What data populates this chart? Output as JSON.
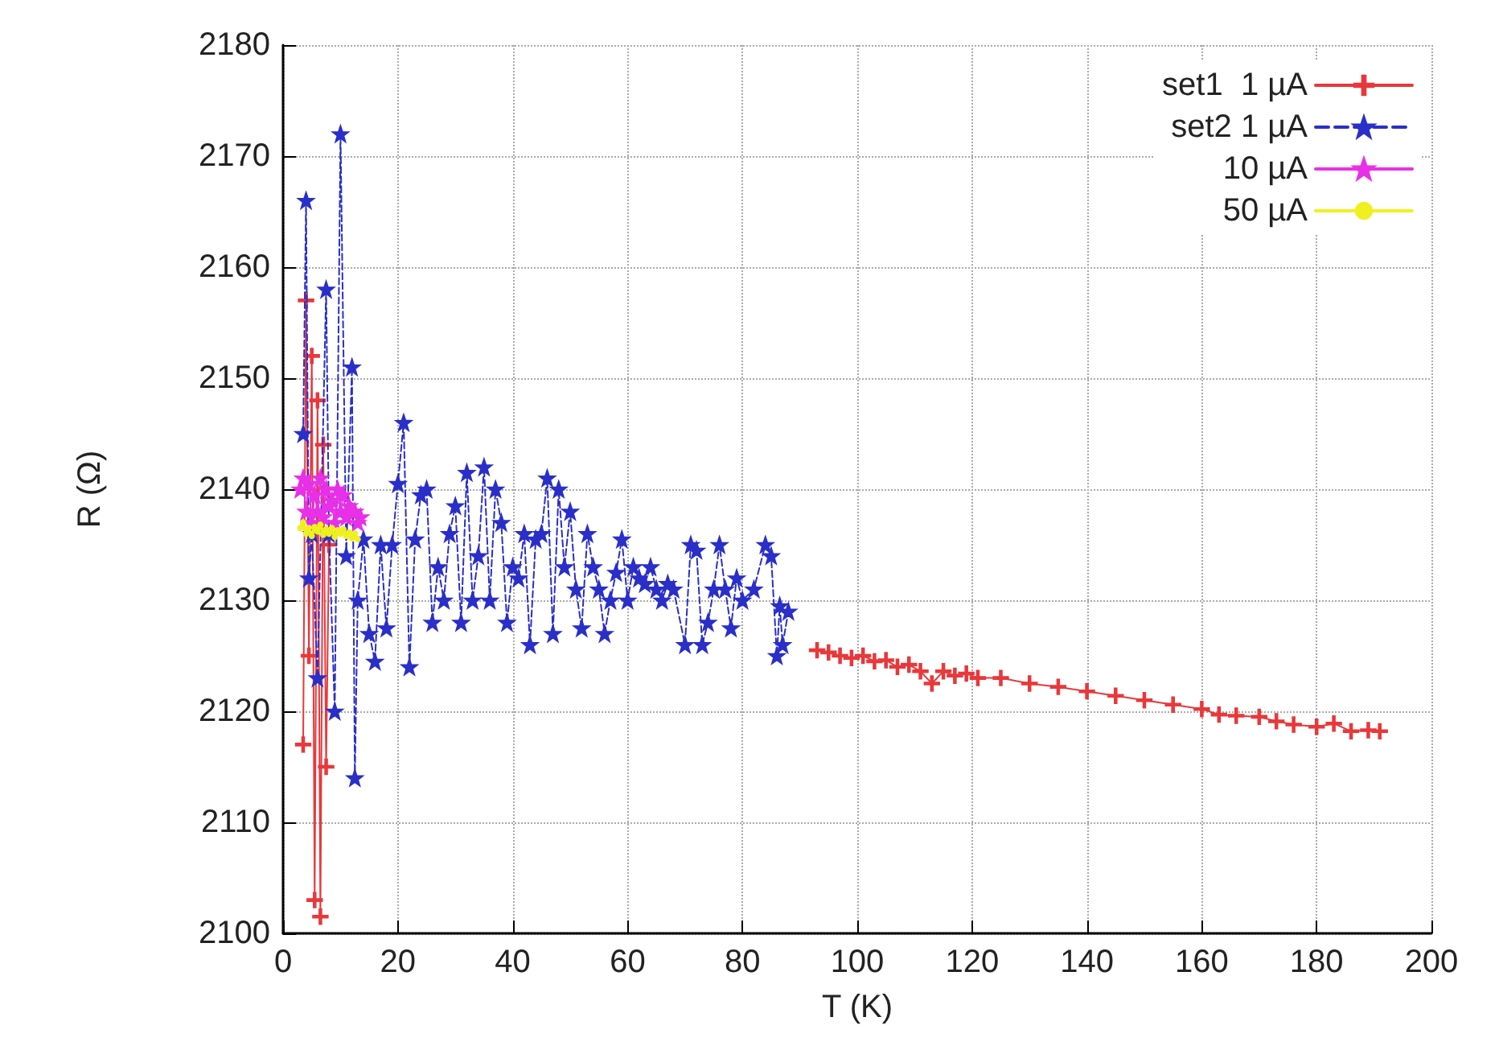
{
  "chart_data": {
    "type": "line",
    "xlabel": "T (K)",
    "ylabel": "R (Ω)",
    "xlim": [
      0,
      200
    ],
    "xticks": [
      0,
      20,
      40,
      60,
      80,
      100,
      120,
      140,
      160,
      180,
      200
    ],
    "ylim": [
      2100,
      2180
    ],
    "yticks": [
      2100,
      2110,
      2120,
      2130,
      2140,
      2150,
      2160,
      2170,
      2180
    ],
    "grid": true,
    "legend": "top right",
    "series": [
      {
        "name": "set1  1 µA",
        "color": "#e8383b",
        "marker": "cross",
        "line_style": "solid",
        "x": [
          3.5,
          4,
          4.5,
          5,
          5.5,
          6,
          6.5,
          7,
          7.5,
          8,
          null,
          93,
          95,
          97,
          99,
          101,
          103,
          105,
          107,
          109,
          111,
          113,
          115,
          117,
          119,
          121,
          125,
          130,
          135,
          140,
          145,
          150,
          155,
          160,
          163,
          166,
          170,
          173,
          176,
          180,
          183,
          186,
          189,
          191
        ],
        "values": [
          2117,
          2157,
          2125,
          2152,
          2103,
          2148,
          2101.5,
          2144,
          2115,
          2135,
          null,
          2125.5,
          2125.3,
          2125,
          2124.8,
          2125,
          2124.5,
          2124.6,
          2124,
          2124.2,
          2123.6,
          2122.5,
          2123.6,
          2123.2,
          2123.4,
          2123,
          2123,
          2122.5,
          2122.2,
          2121.8,
          2121.4,
          2121,
          2120.6,
          2120.2,
          2119.7,
          2119.6,
          2119.5,
          2119.1,
          2118.8,
          2118.6,
          2118.9,
          2118.2,
          2118.3,
          2118.2
        ]
      },
      {
        "name": "set2 1 µA",
        "color": "#2a2fc8",
        "marker": "star",
        "line_style": "dashed",
        "x": [
          3.5,
          4,
          4.5,
          5,
          6,
          7.5,
          8,
          9,
          10,
          11,
          12,
          12.5,
          13,
          14,
          15,
          16,
          17,
          18,
          19,
          20,
          21,
          22,
          23,
          24,
          25,
          26,
          27,
          28,
          29,
          30,
          31,
          32,
          33,
          34,
          35,
          36,
          37,
          38,
          39,
          40,
          41,
          42,
          43,
          44,
          45,
          46,
          47,
          48,
          49,
          50,
          51,
          52,
          53,
          54,
          55,
          56,
          57,
          58,
          59,
          60,
          61,
          62,
          63,
          64,
          65,
          66,
          67,
          68,
          70,
          71,
          72,
          73,
          74,
          75,
          76,
          77,
          78,
          79,
          80,
          82,
          84,
          85,
          86,
          86.5,
          87,
          88
        ],
        "values": [
          2145,
          2166,
          2132,
          2136,
          2123,
          2158,
          2136,
          2120,
          2172,
          2134,
          2151,
          2114,
          2130,
          2135.5,
          2127,
          2124.5,
          2135,
          2127.5,
          2135,
          2140.5,
          2146,
          2124,
          2135.5,
          2139.5,
          2140,
          2128,
          2133,
          2130,
          2136,
          2138.5,
          2128,
          2141.5,
          2130,
          2134,
          2142,
          2130,
          2140,
          2137,
          2128,
          2133,
          2132,
          2136,
          2126,
          2135.5,
          2136,
          2141,
          2127,
          2140,
          2133,
          2138,
          2131,
          2127.5,
          2136,
          2133,
          2131,
          2127,
          2130,
          2132.5,
          2135.5,
          2130,
          2133,
          2132,
          2131.5,
          2133,
          2131,
          2130,
          2131.5,
          2131,
          2126,
          2135,
          2134.5,
          2126,
          2128,
          2131,
          2135,
          2131,
          2127.5,
          2132,
          2130,
          2131,
          2135,
          2134,
          2125,
          2129.5,
          2126,
          2129
        ]
      },
      {
        "name": "10 µA",
        "color": "#e830e8",
        "marker": "star",
        "line_style": "solid",
        "x": [
          3,
          3.5,
          4,
          4.5,
          5,
          5.5,
          6,
          6.5,
          7,
          7.5,
          8,
          8.5,
          9,
          9.5,
          10,
          10.5,
          11,
          11.5,
          12,
          12.5,
          13,
          13.5
        ],
        "values": [
          2140,
          2141,
          2138,
          2140.5,
          2137,
          2139.5,
          2138,
          2141,
          2137.5,
          2140,
          2138.5,
          2139,
          2137,
          2140,
          2138,
          2139.5,
          2137.5,
          2138.5,
          2138,
          2138,
          2137,
          2137.5
        ]
      },
      {
        "name": "50 µA",
        "color": "#f0f020",
        "marker": "circle",
        "line_style": "solid",
        "x": [
          3,
          3.5,
          4,
          4.5,
          5,
          5.5,
          6,
          6.5,
          7,
          7.5,
          8,
          8.5,
          9,
          9.5,
          10,
          10.5,
          11,
          11.5,
          12,
          12.5,
          13
        ],
        "values": [
          2136.5,
          2137,
          2136,
          2136.5,
          2135.8,
          2136.6,
          2136.2,
          2136.8,
          2135.9,
          2136.4,
          2136,
          2136.5,
          2135.7,
          2136.3,
          2136,
          2136.4,
          2135.8,
          2136.1,
          2135.6,
          2136,
          2135.5
        ]
      }
    ]
  }
}
